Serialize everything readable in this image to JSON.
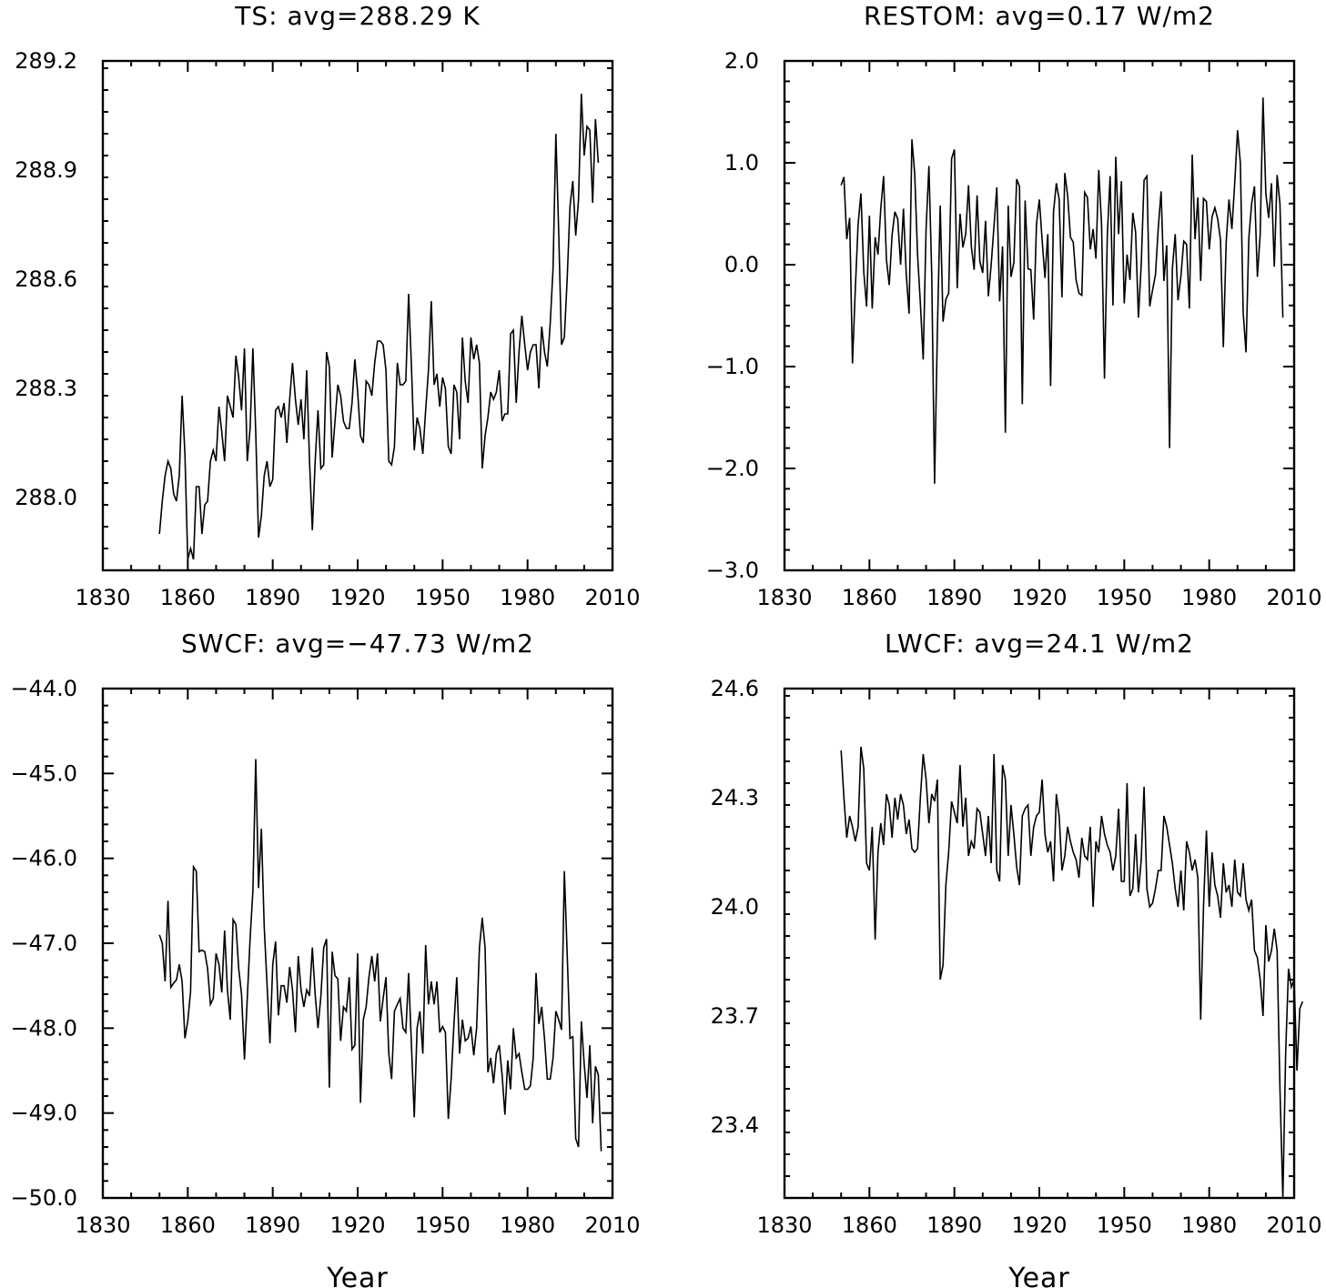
{
  "chart_data": [
    {
      "type": "line",
      "title": "TS: avg=288.29 K",
      "xlabel": "",
      "ylabel": "",
      "xlim": [
        1830,
        2010
      ],
      "ylim": [
        287.8,
        289.2
      ],
      "xticks": [
        "1830",
        "1860",
        "1890",
        "1920",
        "1950",
        "1980",
        "2010"
      ],
      "yticks": [
        "288.0",
        "288.3",
        "288.6",
        "288.9",
        "289.2"
      ],
      "x_start": 1850,
      "values": [
        287.9,
        287.99,
        288.06,
        288.1,
        288.08,
        288.01,
        287.99,
        288.06,
        288.28,
        288.12,
        287.83,
        287.86,
        287.83,
        288.03,
        288.03,
        287.9,
        287.98,
        287.99,
        288.1,
        288.13,
        288.1,
        288.25,
        288.18,
        288.1,
        288.28,
        288.25,
        288.22,
        288.39,
        288.33,
        288.24,
        288.41,
        288.1,
        288.19,
        288.41,
        288.18,
        287.89,
        287.95,
        288.06,
        288.1,
        288.03,
        288.05,
        288.24,
        288.25,
        288.22,
        288.26,
        288.15,
        288.27,
        288.37,
        288.27,
        288.2,
        288.27,
        288.16,
        288.35,
        288.1,
        287.91,
        288.1,
        288.24,
        288.08,
        288.09,
        288.4,
        288.36,
        288.11,
        288.21,
        288.31,
        288.28,
        288.21,
        288.19,
        288.19,
        288.26,
        288.38,
        288.29,
        288.17,
        288.15,
        288.32,
        288.31,
        288.28,
        288.37,
        288.43,
        288.43,
        288.42,
        288.35,
        288.1,
        288.09,
        288.14,
        288.37,
        288.31,
        288.31,
        288.32,
        288.56,
        288.36,
        288.13,
        288.22,
        288.19,
        288.12,
        288.24,
        288.35,
        288.54,
        288.31,
        288.34,
        288.25,
        288.33,
        288.3,
        288.14,
        288.12,
        288.31,
        288.29,
        288.16,
        288.44,
        288.32,
        288.26,
        288.44,
        288.38,
        288.42,
        288.37,
        288.08,
        288.17,
        288.22,
        288.29,
        288.27,
        288.29,
        288.35,
        288.21,
        288.23,
        288.23,
        288.45,
        288.46,
        288.26,
        288.4,
        288.5,
        288.42,
        288.35,
        288.4,
        288.42,
        288.42,
        288.3,
        288.47,
        288.4,
        288.36,
        288.48,
        288.63,
        289.0,
        288.73,
        288.42,
        288.44,
        288.6,
        288.8,
        288.87,
        288.72,
        288.82,
        289.11,
        288.94,
        289.02,
        289.01,
        288.81,
        289.04,
        288.92
      ]
    },
    {
      "type": "line",
      "title": "RESTOM: avg=0.17 W/m2",
      "xlabel": "",
      "ylabel": "",
      "xlim": [
        1830,
        2010
      ],
      "ylim": [
        -3.0,
        2.0
      ],
      "xticks": [
        "1830",
        "1860",
        "1890",
        "1920",
        "1950",
        "1980",
        "2010"
      ],
      "yticks": [
        "−3.0",
        "−2.0",
        "−1.0",
        "0.0",
        "1.0",
        "2.0"
      ],
      "x_start": 1850,
      "values": [
        0.78,
        0.86,
        0.25,
        0.46,
        -0.97,
        -0.24,
        0.4,
        0.7,
        -0.07,
        -0.41,
        0.48,
        -0.43,
        0.27,
        0.1,
        0.55,
        0.87,
        0.05,
        -0.2,
        0.29,
        0.52,
        0.45,
        0.0,
        0.55,
        -0.1,
        -0.48,
        1.23,
        0.89,
        0.1,
        -0.38,
        -0.93,
        0.36,
        0.97,
        -0.1,
        -2.15,
        -0.65,
        0.58,
        -0.56,
        -0.34,
        -0.28,
        1.04,
        1.13,
        -0.23,
        0.5,
        0.17,
        0.3,
        0.78,
        0.18,
        -0.05,
        0.68,
        0.03,
        -0.08,
        0.43,
        -0.31,
        0.0,
        0.38,
        0.76,
        -0.36,
        0.18,
        -1.65,
        0.58,
        -0.12,
        0.02,
        0.84,
        0.77,
        -1.37,
        0.63,
        -0.04,
        -0.05,
        -0.54,
        0.4,
        0.64,
        0.24,
        -0.13,
        0.3,
        -1.19,
        0.52,
        0.8,
        0.64,
        -0.32,
        0.9,
        0.68,
        0.27,
        0.22,
        -0.15,
        -0.28,
        -0.3,
        0.71,
        0.66,
        0.15,
        0.35,
        0.06,
        0.93,
        0.39,
        -1.12,
        0.28,
        0.87,
        -0.4,
        1.06,
        0.3,
        0.82,
        -0.38,
        0.1,
        -0.15,
        0.51,
        0.32,
        -0.52,
        0.01,
        0.83,
        0.87,
        -0.41,
        -0.25,
        -0.1,
        0.36,
        0.72,
        -0.16,
        0.19,
        -1.8,
        -0.04,
        0.3,
        -0.35,
        -0.11,
        0.23,
        0.2,
        -0.43,
        1.08,
        0.25,
        0.66,
        -0.16,
        0.65,
        0.62,
        0.15,
        0.47,
        0.56,
        0.45,
        0.24,
        -0.81,
        0.22,
        0.64,
        0.35,
        0.8,
        1.32,
        1.0,
        -0.47,
        -0.86,
        0.26,
        0.6,
        0.77,
        -0.12,
        0.3,
        1.64,
        0.7,
        0.46,
        0.8,
        -0.02,
        0.88,
        0.6,
        -0.52
      ]
    },
    {
      "type": "line",
      "title": "SWCF: avg=−47.73 W/m2",
      "xlabel": "Year",
      "ylabel": "",
      "xlim": [
        1830,
        2010
      ],
      "ylim": [
        -50.0,
        -44.0
      ],
      "xticks": [
        "1830",
        "1860",
        "1890",
        "1920",
        "1950",
        "1980",
        "2010"
      ],
      "yticks": [
        "−50.0",
        "−49.0",
        "−48.0",
        "−47.0",
        "−46.0",
        "−45.0",
        "−44.0"
      ],
      "x_start": 1850,
      "values": [
        -46.9,
        -47.0,
        -47.45,
        -46.5,
        -47.52,
        -47.47,
        -47.43,
        -47.25,
        -47.45,
        -48.12,
        -47.92,
        -47.57,
        -46.1,
        -46.15,
        -47.1,
        -47.08,
        -47.1,
        -47.3,
        -47.72,
        -47.65,
        -47.12,
        -47.25,
        -47.58,
        -46.85,
        -47.55,
        -47.9,
        -46.72,
        -46.78,
        -47.3,
        -47.6,
        -48.37,
        -47.65,
        -46.95,
        -46.38,
        -44.83,
        -46.35,
        -45.65,
        -46.8,
        -47.48,
        -48.18,
        -47.25,
        -46.98,
        -47.85,
        -47.5,
        -47.5,
        -47.7,
        -47.28,
        -47.55,
        -48.05,
        -47.15,
        -47.55,
        -47.75,
        -47.55,
        -47.62,
        -47.05,
        -47.6,
        -48.0,
        -47.62,
        -47.05,
        -46.95,
        -48.7,
        -47.1,
        -47.38,
        -47.42,
        -48.15,
        -47.75,
        -47.8,
        -47.4,
        -48.25,
        -48.2,
        -47.12,
        -48.88,
        -47.9,
        -47.75,
        -47.4,
        -47.15,
        -47.45,
        -47.12,
        -47.92,
        -47.65,
        -47.4,
        -48.3,
        -48.6,
        -47.8,
        -47.72,
        -47.65,
        -48.0,
        -48.05,
        -47.35,
        -48.2,
        -49.05,
        -48.0,
        -47.8,
        -48.3,
        -47.02,
        -47.72,
        -47.45,
        -47.72,
        -47.45,
        -48.05,
        -47.98,
        -48.05,
        -49.07,
        -48.6,
        -47.95,
        -47.4,
        -48.3,
        -47.9,
        -48.15,
        -48.12,
        -47.98,
        -48.32,
        -48.0,
        -47.05,
        -46.7,
        -47.05,
        -48.52,
        -48.35,
        -48.65,
        -48.3,
        -48.2,
        -48.55,
        -49.02,
        -48.38,
        -48.72,
        -48.0,
        -48.35,
        -48.3,
        -48.52,
        -48.72,
        -48.72,
        -48.68,
        -48.35,
        -47.35,
        -47.95,
        -47.75,
        -48.12,
        -48.6,
        -48.6,
        -48.35,
        -47.8,
        -47.9,
        -48.02,
        -46.15,
        -47.12,
        -48.12,
        -48.1,
        -49.3,
        -49.4,
        -47.92,
        -48.42,
        -48.82,
        -48.2,
        -49.12,
        -48.45,
        -48.55,
        -49.45
      ]
    },
    {
      "type": "line",
      "title": "LWCF: avg=24.1 W/m2",
      "xlabel": "Year",
      "ylabel": "",
      "xlim": [
        1830,
        2010
      ],
      "ylim": [
        23.2,
        24.6
      ],
      "xticks": [
        "1830",
        "1860",
        "1890",
        "1920",
        "1950",
        "1980",
        "2010"
      ],
      "yticks": [
        "23.4",
        "23.7",
        "24.0",
        "24.3",
        "24.6"
      ],
      "x_start": 1850,
      "values": [
        24.43,
        24.3,
        24.19,
        24.25,
        24.22,
        24.18,
        24.22,
        24.44,
        24.38,
        24.12,
        24.1,
        24.22,
        23.91,
        24.15,
        24.23,
        24.17,
        24.31,
        24.28,
        24.19,
        24.3,
        24.24,
        24.31,
        24.28,
        24.2,
        24.24,
        24.16,
        24.15,
        24.16,
        24.3,
        24.42,
        24.35,
        24.23,
        24.31,
        24.29,
        24.35,
        23.8,
        23.84,
        24.06,
        24.15,
        24.29,
        24.26,
        24.23,
        24.39,
        24.22,
        24.3,
        24.14,
        24.18,
        24.16,
        24.27,
        24.26,
        24.2,
        24.14,
        24.25,
        24.12,
        24.42,
        24.1,
        24.07,
        24.39,
        24.35,
        24.14,
        24.28,
        24.2,
        24.11,
        24.06,
        24.25,
        24.27,
        24.28,
        24.14,
        24.22,
        24.25,
        24.26,
        24.35,
        24.2,
        24.15,
        24.18,
        24.07,
        24.31,
        24.25,
        24.1,
        24.14,
        24.22,
        24.18,
        24.15,
        24.13,
        24.08,
        24.19,
        24.14,
        24.13,
        24.22,
        24.0,
        24.18,
        24.15,
        24.25,
        24.2,
        24.17,
        24.15,
        24.1,
        24.14,
        24.27,
        24.07,
        24.07,
        24.34,
        24.03,
        24.05,
        24.2,
        24.04,
        24.13,
        24.33,
        24.05,
        24.0,
        24.01,
        24.05,
        24.1,
        24.1,
        24.25,
        24.22,
        24.17,
        24.12,
        24.05,
        24.0,
        24.1,
        23.99,
        24.18,
        24.15,
        24.1,
        24.13,
        24.08,
        23.69,
        24.0,
        24.21,
        24.0,
        24.15,
        24.06,
        24.03,
        23.97,
        24.12,
        24.04,
        24.06,
        24.0,
        24.13,
        24.04,
        24.03,
        24.12,
        24.02,
        23.99,
        24.02,
        23.88,
        23.86,
        23.8,
        23.7,
        23.95,
        23.85,
        23.88,
        23.94,
        23.88,
        23.5,
        23.2,
        23.6,
        23.83,
        23.78,
        23.8,
        23.55,
        23.72,
        23.74
      ]
    }
  ]
}
